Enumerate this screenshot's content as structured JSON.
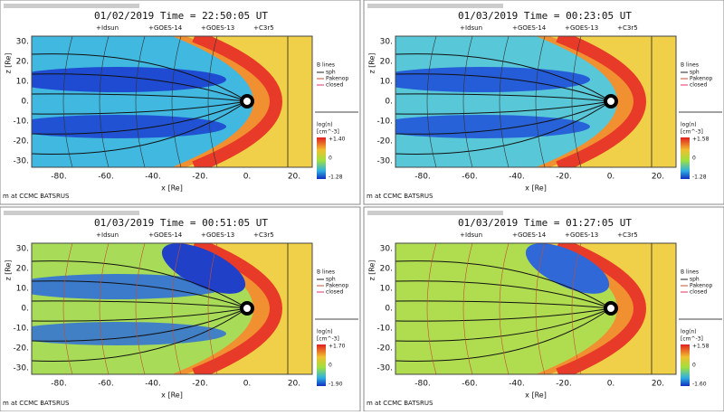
{
  "panels": [
    {
      "title": "01/02/2019 Time = 22:50:05 UT",
      "legend": [
        "Idsun",
        "GOES-14",
        "GOES-13",
        "C3r5"
      ],
      "line_legend": {
        "title": "B lines",
        "items": [
          "sph",
          "Pakenop",
          "closed"
        ]
      },
      "colorbar": {
        "title": "log(n)",
        "unit": "[cm^-3]",
        "labels": [
          "+1.40",
          "0",
          "-1.28"
        ]
      },
      "yticks": [
        "30.",
        "20.",
        "10.",
        "0.",
        "-10.",
        "-20.",
        "-30."
      ],
      "ylabel": "z [Re]",
      "xticks": [
        "-80.",
        "-60.",
        "-40.",
        "-20.",
        "0.",
        "20."
      ],
      "xlabel": "x [Re]",
      "footer": "m at CCMC BATSRUS"
    },
    {
      "title": "01/03/2019 Time = 00:23:05 UT",
      "legend": [
        "Idsun",
        "GOES-14",
        "GOES-13",
        "C3r5"
      ],
      "line_legend": {
        "title": "B lines",
        "items": [
          "sph",
          "Pakenop",
          "closed"
        ]
      },
      "colorbar": {
        "title": "log(n)",
        "unit": "[cm^-3]",
        "labels": [
          "+1.58",
          "0",
          "-1.28"
        ]
      },
      "yticks": [
        "30.",
        "20.",
        "10.",
        "0.",
        "-10.",
        "-20.",
        "-30."
      ],
      "ylabel": "z [Re]",
      "xticks": [
        "-80.",
        "-60.",
        "-40.",
        "-20.",
        "0.",
        "20."
      ],
      "xlabel": "x [Re]",
      "footer": "m at CCMC BATSRUS"
    },
    {
      "title": "01/03/2019 Time = 00:51:05 UT",
      "legend": [
        "Idsun",
        "GOES-14",
        "GOES-13",
        "C3r5"
      ],
      "line_legend": {
        "title": "B lines",
        "items": [
          "sph",
          "Pakenop",
          "closed"
        ]
      },
      "colorbar": {
        "title": "log(n)",
        "unit": "[cm^-3]",
        "labels": [
          "+1.70",
          "0",
          "-1.90"
        ]
      },
      "yticks": [
        "30.",
        "20.",
        "10.",
        "0.",
        "-10.",
        "-20.",
        "-30."
      ],
      "ylabel": "z [Re]",
      "xticks": [
        "-80.",
        "-60.",
        "-40.",
        "-20.",
        "0.",
        "20."
      ],
      "xlabel": "x [Re]",
      "footer": "m at CCMC BATSRUS"
    },
    {
      "title": "01/03/2019 Time = 01:27:05 UT",
      "legend": [
        "Idsun",
        "GOES-14",
        "GOES-13",
        "C3r5"
      ],
      "line_legend": {
        "title": "B lines",
        "items": [
          "sph",
          "Pakenop",
          "closed"
        ]
      },
      "colorbar": {
        "title": "log(n)",
        "unit": "[cm^-3]",
        "labels": [
          "+1.58",
          "0",
          "-1.60"
        ]
      },
      "yticks": [
        "30.",
        "20.",
        "10.",
        "0.",
        "-10.",
        "-20.",
        "-30."
      ],
      "ylabel": "z [Re]",
      "xticks": [
        "-80.",
        "-60.",
        "-40.",
        "-20.",
        "0.",
        "20."
      ],
      "xlabel": "x [Re]",
      "footer": "m at CCMC BATSRUS"
    }
  ]
}
